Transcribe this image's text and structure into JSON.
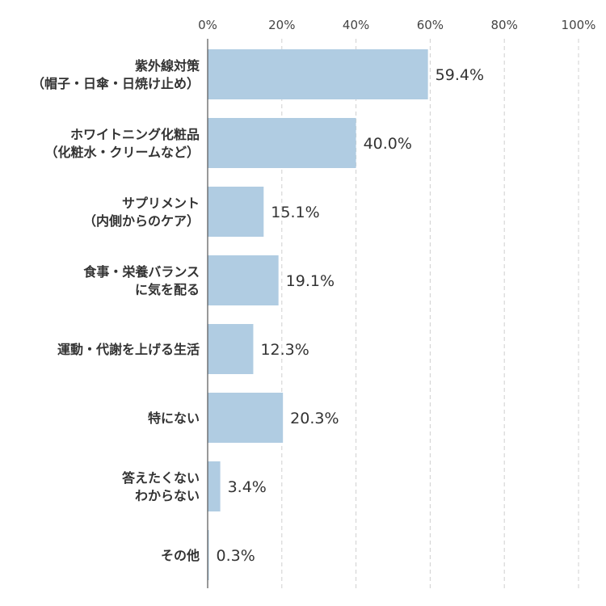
{
  "chart_data": {
    "type": "bar",
    "orientation": "horizontal",
    "categories": [
      [
        "紫外線対策",
        "（帽子・日傘・日焼け止め）"
      ],
      [
        "ホワイトニング化粧品",
        "（化粧水・クリームなど）"
      ],
      [
        "サプリメント",
        "（内側からのケア）"
      ],
      [
        "食事・栄養バランス",
        "に気を配る"
      ],
      [
        "運動・代謝を上げる生活"
      ],
      [
        "特にない"
      ],
      [
        "答えたくない",
        "わからない"
      ],
      [
        "その他"
      ]
    ],
    "values": [
      59.4,
      40.0,
      15.1,
      19.1,
      12.3,
      20.3,
      3.4,
      0.3
    ],
    "value_labels": [
      "59.4%",
      "40.0%",
      "15.1%",
      "19.1%",
      "12.3%",
      "20.3%",
      "3.4%",
      "0.3%"
    ],
    "xlim": [
      0,
      100
    ],
    "xticks": [
      0,
      20,
      40,
      60,
      80,
      100
    ],
    "xtick_labels": [
      "0%",
      "20%",
      "40%",
      "60%",
      "80%",
      "100%"
    ],
    "grid": true,
    "bar_color": "#b0cce2",
    "axis_position": "top"
  }
}
